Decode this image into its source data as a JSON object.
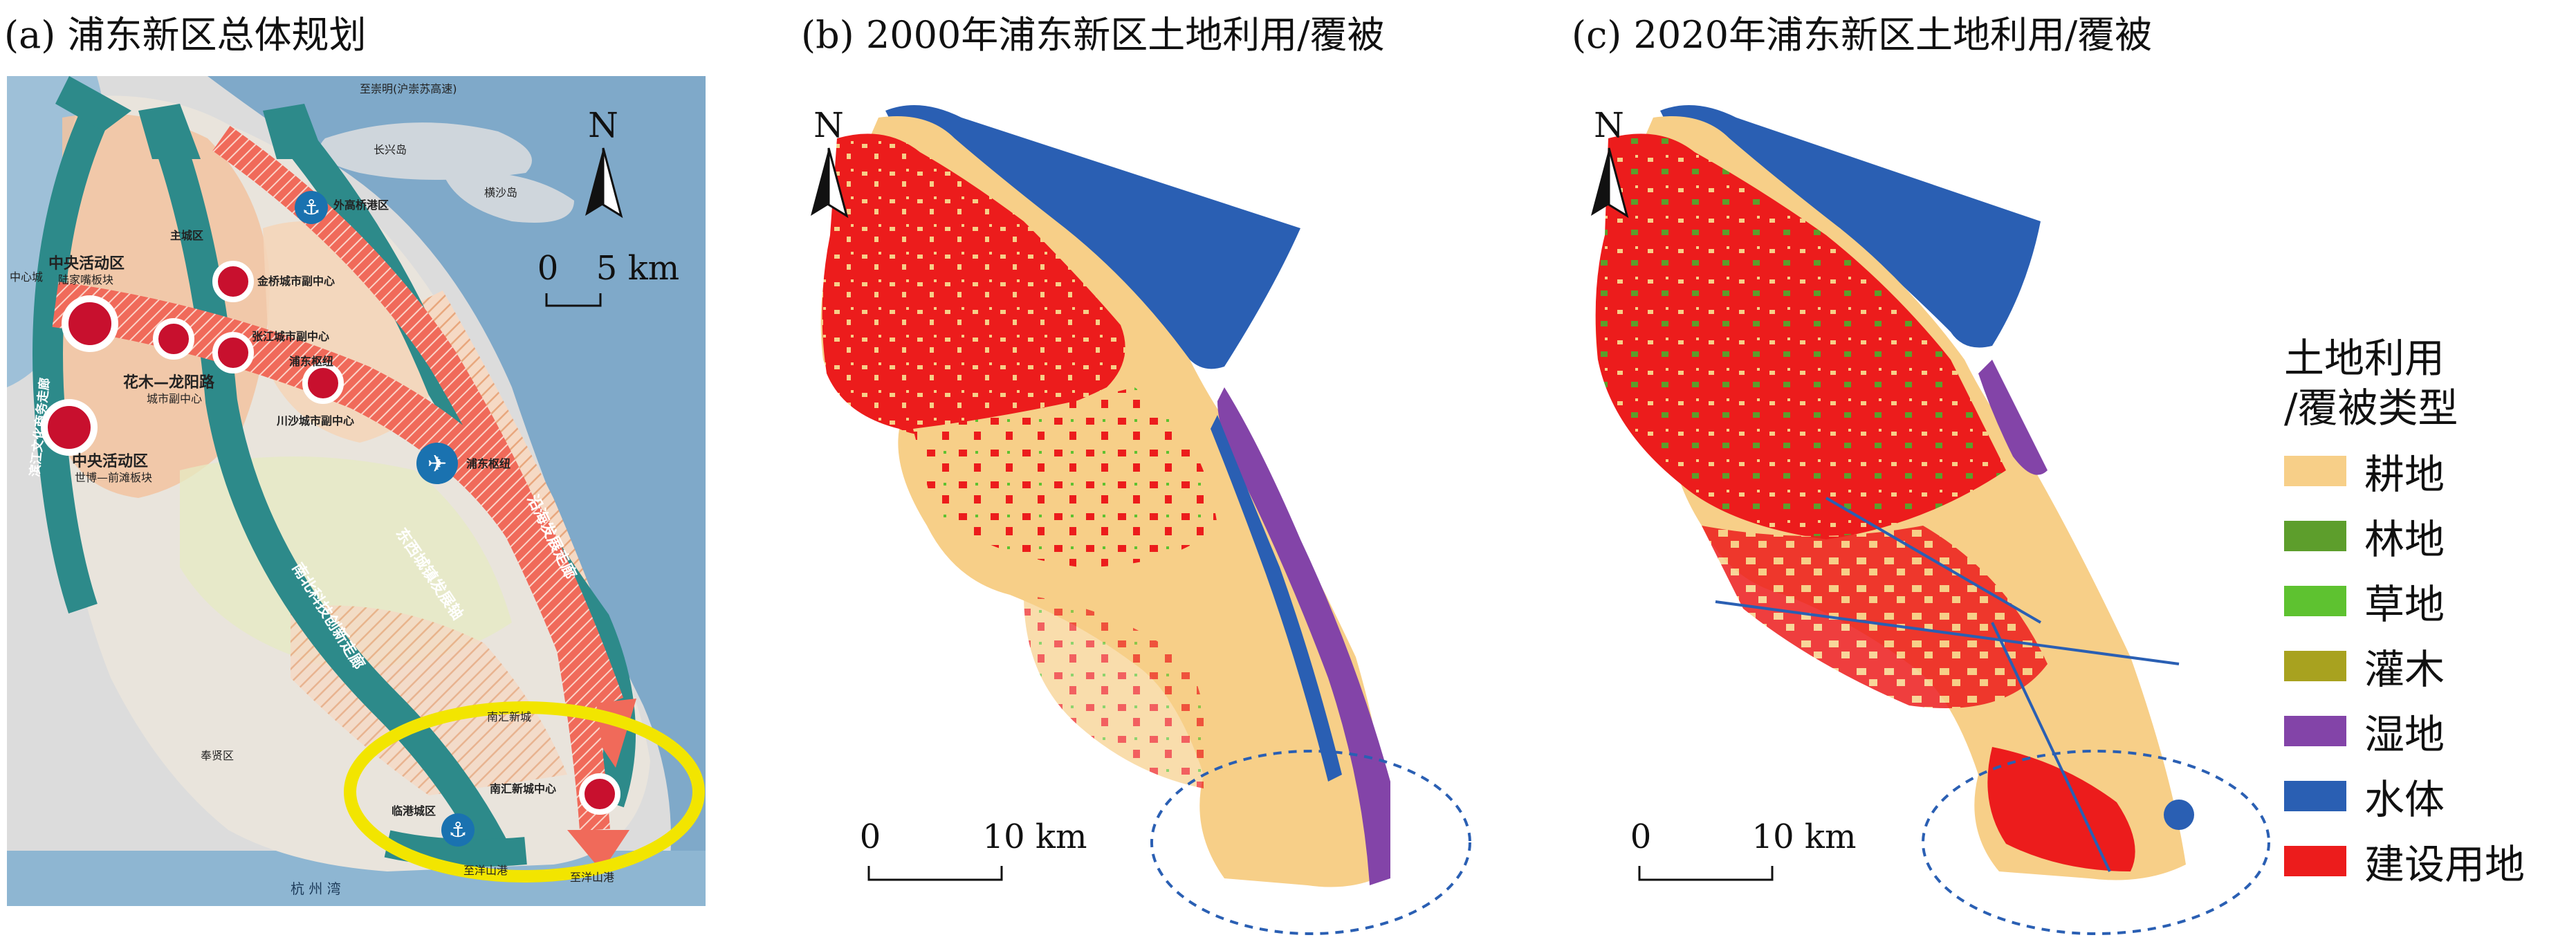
{
  "panels": {
    "a": {
      "title": "(a) 浦东新区总体规划"
    },
    "b": {
      "title": "(b) 2000年浦东新区土地利用/覆被",
      "scale_zero": "0",
      "scale_end": "10 km"
    },
    "c": {
      "title": "(c) 2020年浦东新区土地利用/覆被",
      "scale_zero": "0",
      "scale_end": "10 km"
    }
  },
  "plan_map": {
    "north": "N",
    "scale_zero": "0",
    "scale_end": "5 km",
    "labels": {
      "chongming": "至崇明(沪崇苏高速)",
      "changxing": "长兴岛",
      "hengsha": "横沙岛",
      "waigaoqiao": "外高桥港区",
      "main_city": "主城区",
      "cbd1": "中央活动区",
      "cbd1_sub": "陆家嘴板块",
      "center_city": "中心城",
      "jinqiao": "金桥城市副中心",
      "zhangjiang": "张江城市副中心",
      "pudong_hub": "浦东枢纽",
      "huamu": "花木—龙阳路",
      "huamu_sub": "城市副中心",
      "chuansha": "川沙城市副中心",
      "cbd2": "中央活动区",
      "cbd2_sub": "世博—前滩板块",
      "airport": "浦东枢纽",
      "corridor1": "滨江文化商务走廊",
      "corridor2": "南北科技创新走廊",
      "corridor3": "东西城镇发展轴",
      "corridor4": "沿海发展走廊",
      "fengxian": "奉贤区",
      "nanhui_town": "南汇新城",
      "lingang": "临港城区",
      "nanhui_center": "南汇新城中心",
      "yangshan1": "至洋山港",
      "yangshan2": "至洋山港",
      "hangzhou_bay": "杭 州 湾"
    }
  },
  "legend": {
    "title_line1": "土地利用",
    "title_line2": "/覆被类型",
    "items": [
      {
        "label": "耕地",
        "color": "#f7cf88"
      },
      {
        "label": "林地",
        "color": "#5d9e2c"
      },
      {
        "label": "草地",
        "color": "#5ec230"
      },
      {
        "label": "灌木",
        "color": "#a8a21f"
      },
      {
        "label": "湿地",
        "color": "#8344a8"
      },
      {
        "label": "水体",
        "color": "#2a5fb3"
      },
      {
        "label": "建设用地",
        "color": "#ec1c1c"
      }
    ]
  }
}
